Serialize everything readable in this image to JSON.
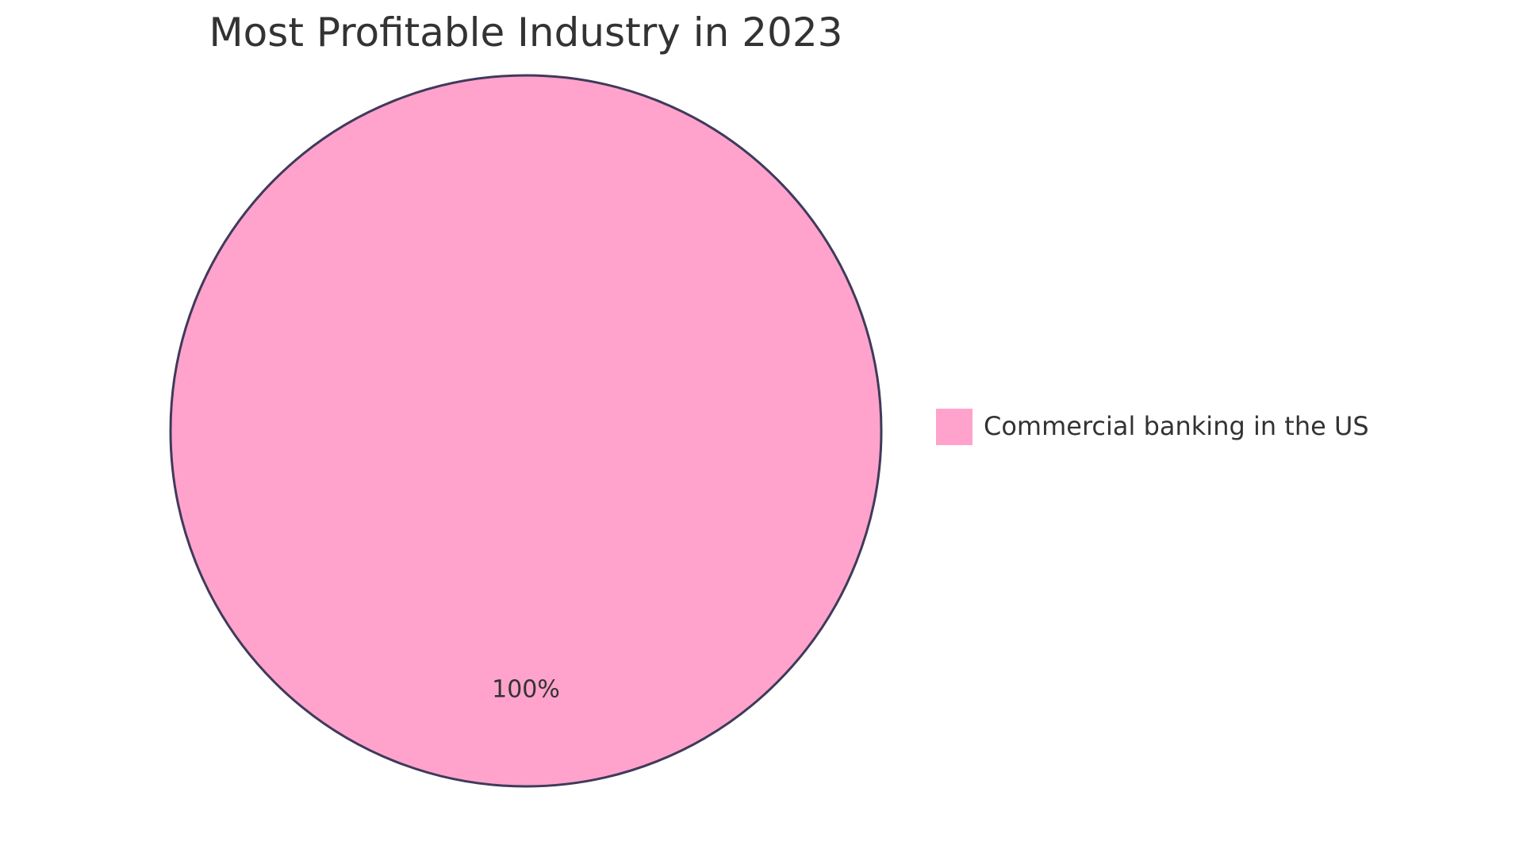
{
  "chart_data": {
    "type": "pie",
    "title": "Most Profitable Industry in 2023",
    "slices": [
      {
        "label": "Commercial banking in the US",
        "value": 100,
        "value_label": "100%",
        "color": "#FFA3CC"
      }
    ],
    "stroke_color": "#3F3A5A",
    "legend_position": "right"
  }
}
